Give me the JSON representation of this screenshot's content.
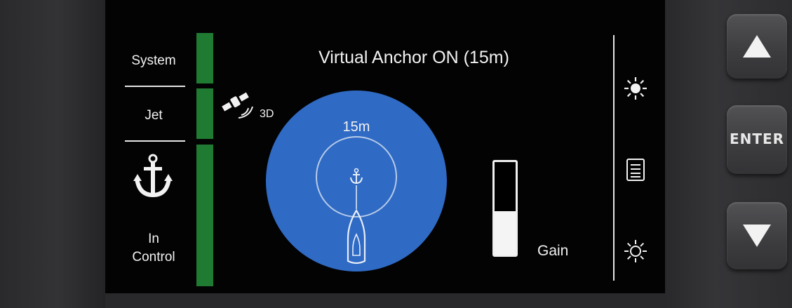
{
  "sidebar": {
    "system_label": "System",
    "jet_label": "Jet",
    "anchor_icon": "anchor-icon",
    "status_line1": "In",
    "status_line2": "Control"
  },
  "title": "Virtual Anchor ON (15m)",
  "gps": {
    "icon": "satellite-icon",
    "label": "3D"
  },
  "radar": {
    "radius_label": "15m",
    "color": "#2f6ac4"
  },
  "gain": {
    "label": "Gain",
    "level": 0.47
  },
  "right_icons": [
    "brightness-up-icon",
    "menu-icon",
    "brightness-down-icon"
  ],
  "buttons": {
    "up_icon": "arrow-up-icon",
    "enter_label": "ENTER",
    "down_icon": "arrow-down-icon"
  },
  "colors": {
    "status_bar": "#1f7a32",
    "circle": "#2f6ac4",
    "screen": "#030303"
  }
}
